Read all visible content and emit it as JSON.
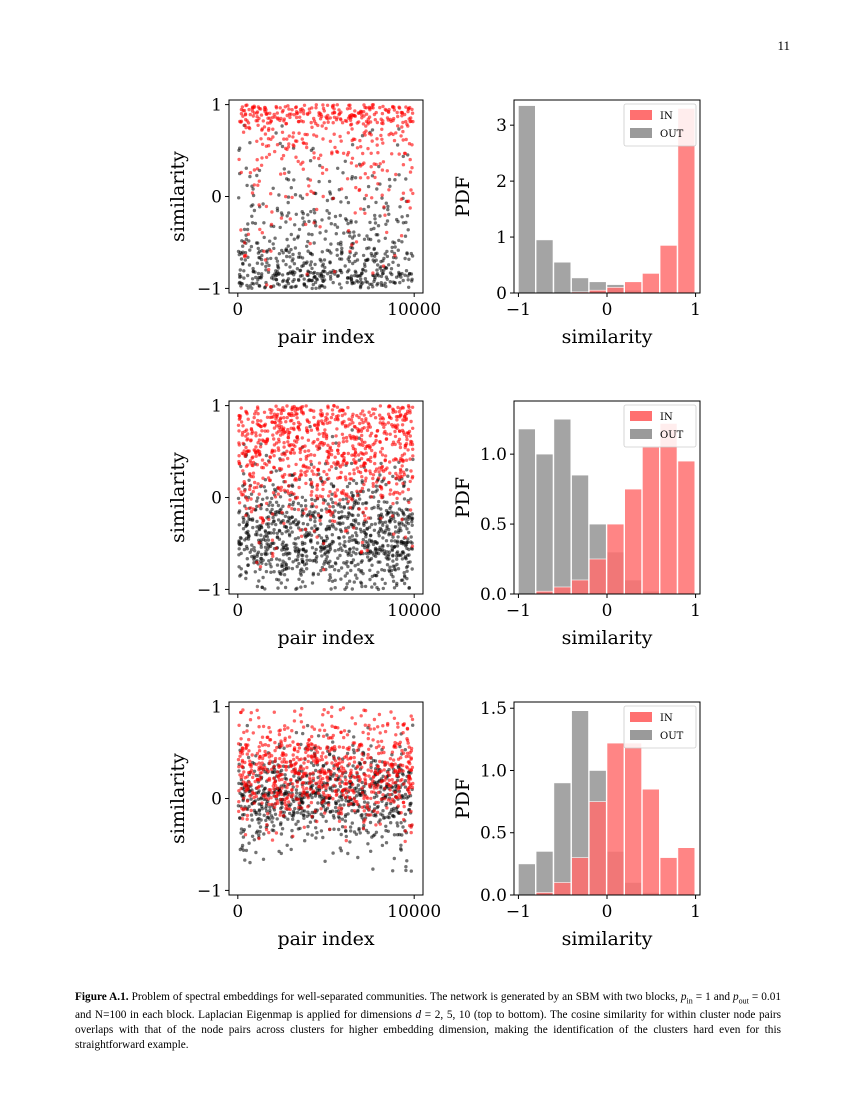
{
  "page_number": "11",
  "caption": {
    "label": "Figure A.1.",
    "text_1": " Problem of spectral embeddings for well-separated communities. The network is generated by an SBM with two blocks, ",
    "p_in_sym": "p",
    "p_in_sub": "in",
    "text_2": " = 1 and ",
    "p_out_sym": "p",
    "p_out_sub": "out",
    "text_3": " = 0.01 and N=100 in each block. Laplacian Eigenmap is applied for dimensions ",
    "d_sym": "d",
    "text_4": " = 2, 5, 10 (top to bottom). The cosine similarity for within cluster node pairs overlaps with that of the node pairs across clusters for higher embedding dimension, making the identification of the clusters hard even for this straightforward example."
  },
  "colors": {
    "in": "#ff0000",
    "out": "#000000",
    "in_hist": "#ff7070",
    "out_hist": "#9a9a9a"
  },
  "chart_data": [
    {
      "type": "scatter",
      "row": 0,
      "xlabel": "pair index",
      "ylabel": "similarity",
      "xlim": [
        -500,
        10500
      ],
      "ylim": [
        -1.05,
        1.05
      ],
      "xticks": [
        "0",
        "10000"
      ],
      "yticks": [
        "1",
        "0",
        "−1"
      ],
      "series": [
        {
          "name": "IN",
          "density_profile": [
            0.02,
            0.03,
            0.04,
            0.05,
            0.07,
            0.1,
            0.15,
            0.22,
            0.35,
            1.0
          ]
        },
        {
          "name": "OUT",
          "density_profile": [
            1.0,
            0.55,
            0.35,
            0.25,
            0.18,
            0.12,
            0.08,
            0.05,
            0.03,
            0.0
          ]
        }
      ]
    },
    {
      "type": "bar",
      "row": 0,
      "xlabel": "similarity",
      "ylabel": "PDF",
      "xlim": [
        -1.05,
        1.05
      ],
      "ylim": [
        0,
        3.45
      ],
      "xticks": [
        "−1",
        "0",
        "1"
      ],
      "yticks": [
        "0",
        "1",
        "2",
        "3"
      ],
      "legend": [
        "IN",
        "OUT"
      ],
      "legend_position": "top-right",
      "bin_edges": [
        -1.0,
        -0.8,
        -0.6,
        -0.4,
        -0.2,
        0.0,
        0.2,
        0.4,
        0.6,
        0.8,
        1.0
      ],
      "series": [
        {
          "name": "IN",
          "values": [
            0.0,
            0.0,
            0.0,
            0.02,
            0.05,
            0.1,
            0.2,
            0.35,
            0.85,
            3.3
          ]
        },
        {
          "name": "OUT",
          "values": [
            3.35,
            0.95,
            0.55,
            0.27,
            0.2,
            0.15,
            0.05,
            0.02,
            0.0,
            0.0
          ]
        }
      ]
    },
    {
      "type": "scatter",
      "row": 1,
      "xlabel": "pair index",
      "ylabel": "similarity",
      "xlim": [
        -500,
        10500
      ],
      "ylim": [
        -1.05,
        1.05
      ],
      "xticks": [
        "0",
        "10000"
      ],
      "yticks": [
        "1",
        "0",
        "−1"
      ],
      "series": [
        {
          "name": "IN",
          "density_profile": [
            0.0,
            0.02,
            0.05,
            0.1,
            0.2,
            0.4,
            0.6,
            0.75,
            0.8,
            0.85
          ]
        },
        {
          "name": "OUT",
          "density_profile": [
            0.4,
            0.8,
            1.0,
            0.9,
            0.6,
            0.3,
            0.12,
            0.05,
            0.02,
            0.0
          ]
        }
      ]
    },
    {
      "type": "bar",
      "row": 1,
      "xlabel": "similarity",
      "ylabel": "PDF",
      "xlim": [
        -1.05,
        1.05
      ],
      "ylim": [
        0,
        1.38
      ],
      "xticks": [
        "−1",
        "0",
        "1"
      ],
      "yticks": [
        "0.0",
        "0.5",
        "1.0"
      ],
      "legend": [
        "IN",
        "OUT"
      ],
      "legend_position": "top-right",
      "bin_edges": [
        -1.0,
        -0.8,
        -0.6,
        -0.4,
        -0.2,
        0.0,
        0.2,
        0.4,
        0.6,
        0.8,
        1.0
      ],
      "series": [
        {
          "name": "IN",
          "values": [
            0.0,
            0.02,
            0.05,
            0.1,
            0.25,
            0.5,
            0.75,
            1.05,
            1.22,
            0.95
          ]
        },
        {
          "name": "OUT",
          "values": [
            1.18,
            1.0,
            1.25,
            0.85,
            0.5,
            0.3,
            0.1,
            0.02,
            0.0,
            0.0
          ]
        }
      ]
    },
    {
      "type": "scatter",
      "row": 2,
      "xlabel": "pair index",
      "ylabel": "similarity",
      "xlim": [
        -500,
        10500
      ],
      "ylim": [
        -1.05,
        1.05
      ],
      "xticks": [
        "0",
        "10000"
      ],
      "yticks": [
        "1",
        "0",
        "−1"
      ],
      "series": [
        {
          "name": "IN",
          "density_profile": [
            0.0,
            0.0,
            0.02,
            0.1,
            0.35,
            0.75,
            0.9,
            0.7,
            0.35,
            0.15
          ]
        },
        {
          "name": "OUT",
          "density_profile": [
            0.0,
            0.05,
            0.15,
            0.45,
            0.9,
            1.0,
            0.6,
            0.2,
            0.05,
            0.0
          ]
        }
      ]
    },
    {
      "type": "bar",
      "row": 2,
      "xlabel": "similarity",
      "ylabel": "PDF",
      "xlim": [
        -1.05,
        1.05
      ],
      "ylim": [
        0,
        1.55
      ],
      "xticks": [
        "−1",
        "0",
        "1"
      ],
      "yticks": [
        "0.0",
        "0.5",
        "1.0",
        "1.5"
      ],
      "legend": [
        "IN",
        "OUT"
      ],
      "legend_position": "top-right",
      "bin_edges": [
        -1.0,
        -0.8,
        -0.6,
        -0.4,
        -0.2,
        0.0,
        0.2,
        0.4,
        0.6,
        0.8,
        1.0
      ],
      "series": [
        {
          "name": "IN",
          "values": [
            0.0,
            0.02,
            0.1,
            0.3,
            0.75,
            1.22,
            1.22,
            0.85,
            0.3,
            0.38
          ]
        },
        {
          "name": "OUT",
          "values": [
            0.25,
            0.35,
            0.9,
            1.48,
            1.0,
            0.35,
            0.1,
            0.02,
            0.0,
            0.0
          ]
        }
      ]
    }
  ]
}
